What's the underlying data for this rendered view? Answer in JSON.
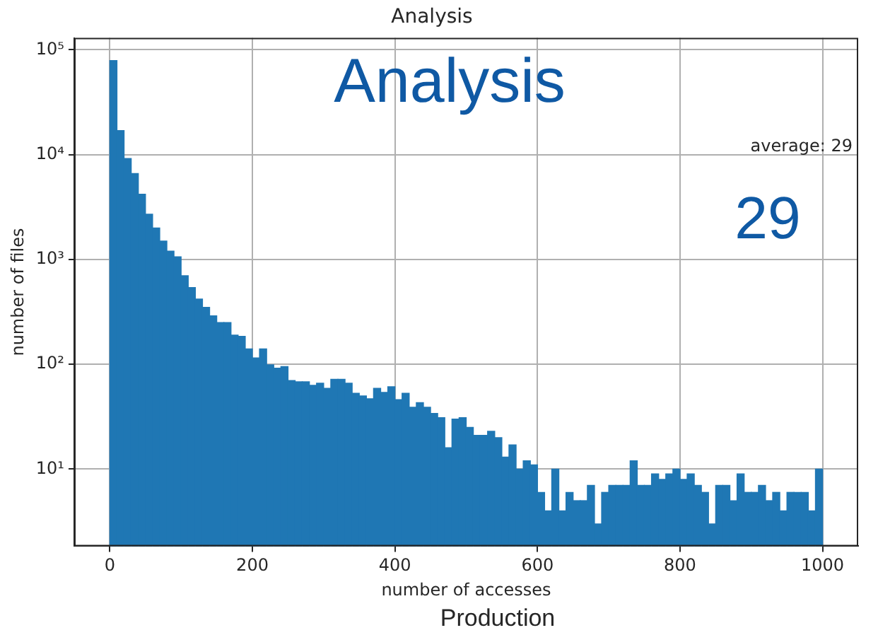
{
  "chart_data": {
    "type": "histogram",
    "title": "Analysis",
    "xlabel": "number of accesses",
    "ylabel": "number of files",
    "bins": [
      0,
      10,
      20,
      30,
      40,
      50,
      60,
      70,
      80,
      90,
      100,
      110,
      120,
      130,
      140,
      150,
      160,
      170,
      180,
      190,
      200,
      210,
      220,
      230,
      240,
      250,
      260,
      270,
      280,
      290,
      300,
      310,
      320,
      330,
      340,
      350,
      360,
      370,
      380,
      390,
      400,
      410,
      420,
      430,
      440,
      450,
      460,
      470,
      480,
      490,
      500,
      510,
      520,
      530,
      540,
      550,
      560,
      570,
      580,
      590,
      600,
      610,
      620,
      630,
      640,
      650,
      660,
      670,
      680,
      690,
      700,
      710,
      720,
      730,
      740,
      750,
      760,
      770,
      780,
      790,
      800,
      810,
      820,
      830,
      840,
      850,
      860,
      870,
      880,
      890,
      900,
      910,
      920,
      930,
      940,
      950,
      960,
      970,
      980,
      990,
      1000
    ],
    "values": [
      79000,
      17000,
      9200,
      6600,
      4200,
      2700,
      2000,
      1500,
      1200,
      1060,
      700,
      540,
      420,
      350,
      290,
      250,
      250,
      190,
      185,
      140,
      115,
      140,
      99,
      92,
      95,
      70,
      68,
      68,
      63,
      66,
      59,
      72,
      72,
      66,
      53,
      50,
      47,
      59,
      54,
      61,
      46,
      53,
      39,
      43,
      39,
      34,
      31,
      16,
      30,
      31,
      25,
      21,
      21,
      23,
      20,
      13,
      17,
      10,
      12,
      11,
      6,
      4,
      10,
      4,
      6,
      5,
      5,
      7,
      3,
      6,
      7,
      7,
      7,
      12,
      7,
      7,
      9,
      8,
      9,
      10,
      8,
      9,
      7,
      6,
      3,
      7,
      7,
      5,
      9,
      6,
      6,
      7,
      5,
      6,
      4,
      6,
      6,
      6,
      4,
      10
    ],
    "color": "#1f77b4",
    "log": "y",
    "grid": true,
    "xlim": [
      -50,
      1050
    ],
    "xticks": [
      0,
      200,
      400,
      600,
      800,
      1000
    ],
    "ylim": [
      1.84,
      130000
    ],
    "yticks": [
      {
        "value": 10,
        "label": "10¹"
      },
      {
        "value": 100,
        "label": "10²"
      },
      {
        "value": 1000,
        "label": "10³"
      },
      {
        "value": 10000,
        "label": "10⁴"
      },
      {
        "value": 100000,
        "label": "10⁵"
      }
    ],
    "annotations": [
      "average: 29",
      "Analysis",
      "29",
      "Production"
    ]
  }
}
